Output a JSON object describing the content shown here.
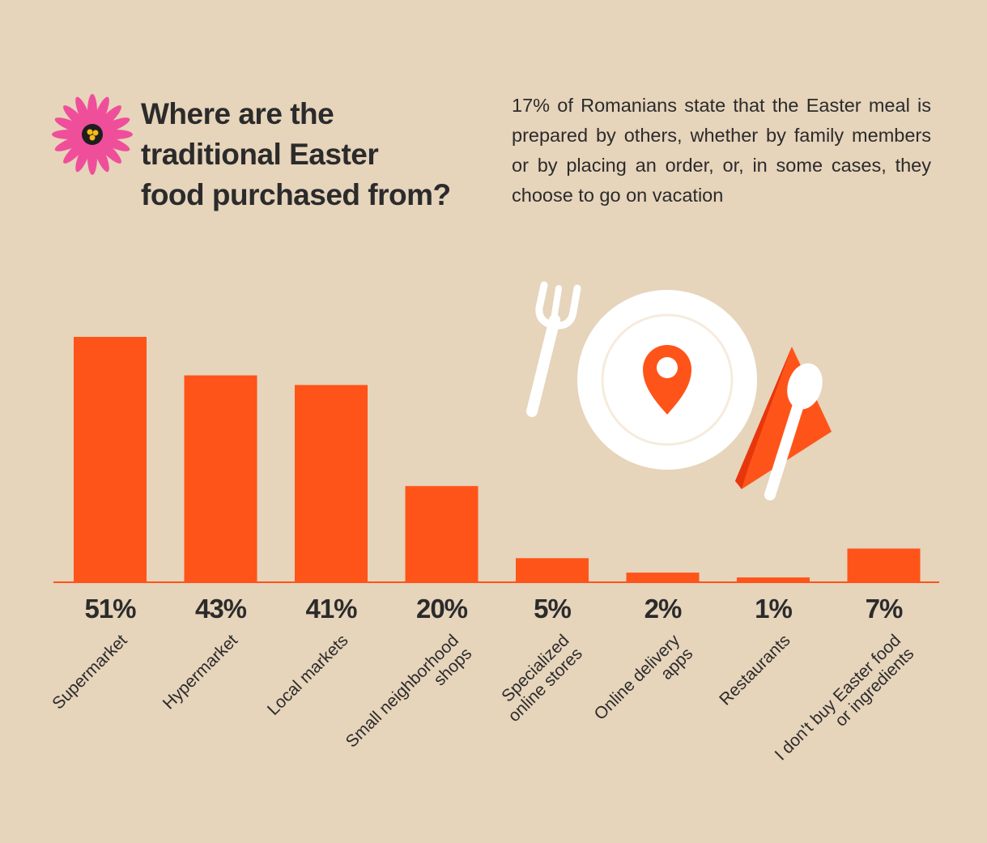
{
  "header": {
    "title_lines": [
      "Where are the",
      "traditional Easter",
      "food purchased from?"
    ],
    "subtitle": "17% of Romanians state that the Easter meal is prepared by others, whether by family members or by placing an order, or, in some cases, they choose to go on vacation"
  },
  "icons": {
    "flower": "flower-icon",
    "plate": "plate-icon",
    "fork": "fork-icon",
    "spoon": "spoon-icon",
    "napkin": "napkin-icon",
    "location_pin": "location-pin-icon"
  },
  "colors": {
    "background": "#e6d4bb",
    "bar": "#ff5419",
    "text": "#2b2b2b",
    "flower_petals": "#ef4f9a",
    "napkin": "#ff5419",
    "plate": "#ffffff"
  },
  "chart_data": {
    "type": "bar",
    "title": "Where are the traditional Easter food purchased from?",
    "categories": [
      [
        "Supermarket"
      ],
      [
        "Hypermarket"
      ],
      [
        "Local markets"
      ],
      [
        "Small neighborhood",
        "shops"
      ],
      [
        "Specialized",
        "online stores"
      ],
      [
        "Online delivery",
        "apps"
      ],
      [
        "Restaurants"
      ],
      [
        "I don't buy Easter food",
        "or ingredients"
      ]
    ],
    "values": [
      51,
      43,
      41,
      20,
      5,
      2,
      1,
      7
    ],
    "value_labels": [
      "51%",
      "43%",
      "41%",
      "20%",
      "5%",
      "2%",
      "1%",
      "7%"
    ],
    "unit": "%",
    "ylim": [
      0,
      51
    ],
    "grid": false,
    "legend": "none"
  }
}
